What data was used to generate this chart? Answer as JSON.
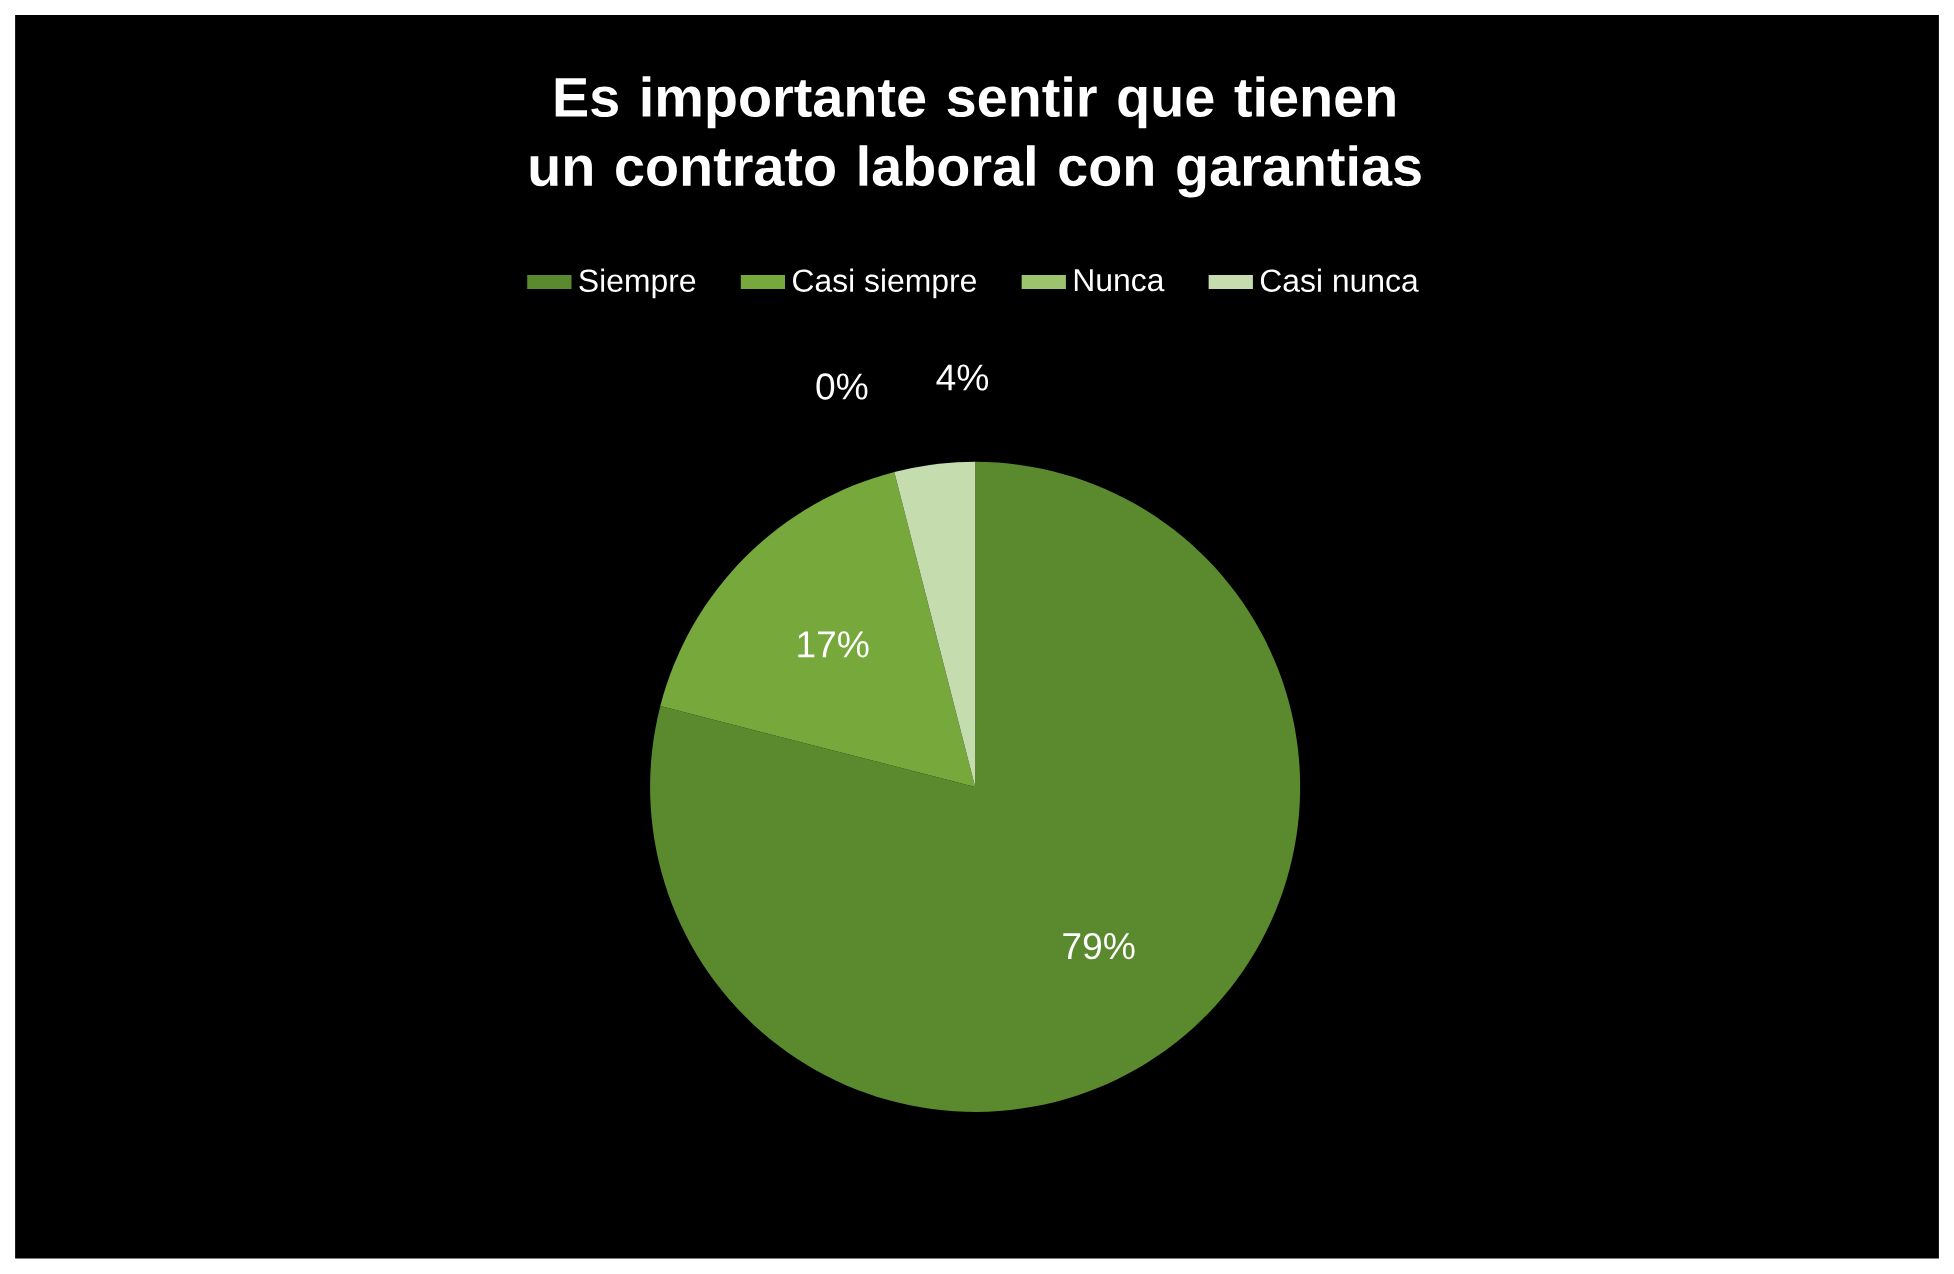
{
  "chart_data": {
    "type": "pie",
    "title": "Es importante sentir que tienen un contrato laboral con garantias",
    "categories": [
      "Siempre",
      "Casi siempre",
      "Nunca",
      "Casi nunca"
    ],
    "values": [
      79,
      17,
      0,
      4
    ],
    "value_labels": [
      "79%",
      "17%",
      "0%",
      "4%"
    ],
    "colors": [
      "#5b8a2e",
      "#77a83c",
      "#9cc46c",
      "#c4dcae"
    ],
    "legend": "top"
  }
}
